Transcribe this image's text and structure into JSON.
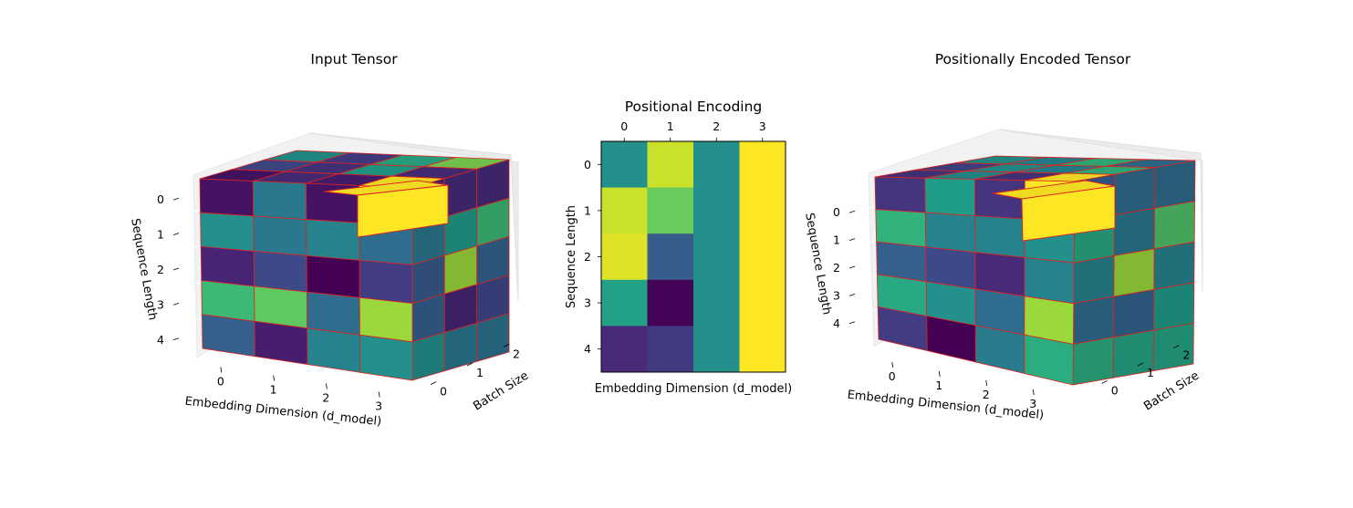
{
  "chart_data": [
    {
      "type": "heatmap",
      "view": "3d-voxels",
      "title": "Input Tensor",
      "xlabel": "Embedding Dimension (d_model)",
      "ylabel": "Batch Size",
      "zlabel": "Sequence Length",
      "x_ticks": [
        "0",
        "1",
        "2",
        "3"
      ],
      "y_ticks": [
        "0",
        "1",
        "2"
      ],
      "z_ticks": [
        "0",
        "1",
        "2",
        "3",
        "4"
      ],
      "colormap": "viridis",
      "edge_color": "#dd2222",
      "front_face": [
        [
          0.05,
          0.4,
          0.05,
          1.0
        ],
        [
          0.5,
          0.4,
          0.45,
          0.35
        ],
        [
          0.1,
          0.22,
          0.0,
          0.18
        ],
        [
          0.68,
          0.75,
          0.35,
          0.85
        ],
        [
          0.3,
          0.08,
          0.45,
          0.5
        ]
      ],
      "top_face": [
        [
          0.5,
          0.18,
          0.6,
          0.8
        ],
        [
          0.22,
          0.15,
          0.55,
          0.12
        ],
        [
          0.05,
          0.12,
          0.08,
          1.0
        ]
      ],
      "side_face": [
        [
          0.12,
          0.12,
          0.12
        ],
        [
          0.4,
          0.55,
          0.68
        ],
        [
          0.28,
          0.85,
          0.32
        ],
        [
          0.3,
          0.1,
          0.22
        ],
        [
          0.5,
          0.4,
          0.38
        ]
      ]
    },
    {
      "type": "heatmap",
      "title": "Positional Encoding",
      "xlabel": "Embedding Dimension (d_model)",
      "ylabel": "Sequence Length",
      "x_ticks": [
        "0",
        "1",
        "2",
        "3"
      ],
      "y_ticks": [
        "0",
        "1",
        "2",
        "3",
        "4"
      ],
      "colormap": "viridis",
      "values": [
        [
          0.0,
          0.841,
          0.0,
          1.0
        ],
        [
          0.841,
          0.54,
          0.0,
          1.0
        ],
        [
          0.909,
          -0.416,
          0.0,
          1.0
        ],
        [
          0.141,
          -0.99,
          0.0,
          1.0
        ],
        [
          -0.757,
          -0.654,
          0.0,
          1.0
        ]
      ],
      "vmin": -1.0,
      "vmax": 1.0
    },
    {
      "type": "heatmap",
      "view": "3d-voxels",
      "title": "Positionally Encoded Tensor",
      "xlabel": "Embedding Dimension (d_model)",
      "ylabel": "Batch Size",
      "zlabel": "Sequence Length",
      "x_ticks": [
        "0",
        "1",
        "2",
        "3"
      ],
      "y_ticks": [
        "0",
        "1",
        "2"
      ],
      "z_ticks": [
        "0",
        "1",
        "2",
        "3",
        "4"
      ],
      "colormap": "viridis",
      "edge_color": "#dd2222",
      "front_face": [
        [
          0.15,
          0.55,
          0.15,
          1.0
        ],
        [
          0.65,
          0.45,
          0.45,
          0.5
        ],
        [
          0.3,
          0.22,
          0.12,
          0.45
        ],
        [
          0.6,
          0.5,
          0.35,
          0.85
        ],
        [
          0.18,
          0.0,
          0.42,
          0.62
        ]
      ],
      "top_face": [
        [
          0.5,
          0.45,
          0.65,
          0.35
        ],
        [
          0.2,
          0.5,
          0.45,
          0.65
        ],
        [
          0.15,
          0.48,
          0.15,
          1.0
        ]
      ],
      "side_face": [
        [
          0.3,
          0.35,
          0.35
        ],
        [
          0.6,
          0.4,
          0.72
        ],
        [
          0.45,
          0.85,
          0.45
        ],
        [
          0.35,
          0.32,
          0.55
        ],
        [
          0.62,
          0.58,
          0.58
        ]
      ]
    }
  ]
}
